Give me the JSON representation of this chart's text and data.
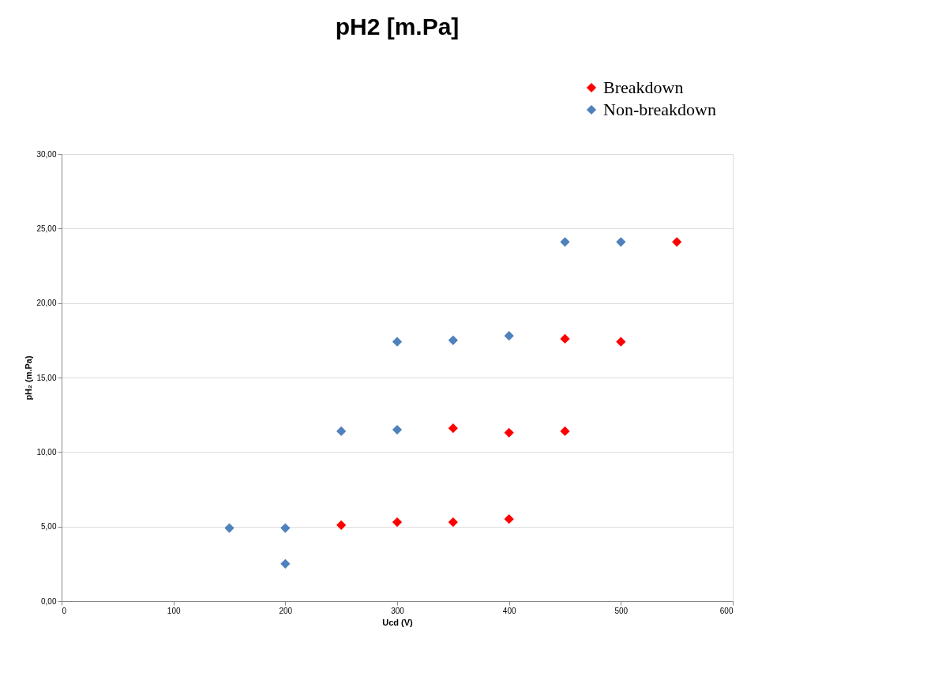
{
  "chart_data": {
    "type": "scatter",
    "title": "pH2 [m.Pa]",
    "xlabel": "Ucd (V)",
    "ylabel": "pH₂ (m.Pa)",
    "series": [
      {
        "name": "Breakdown",
        "color": "#ff0000",
        "x": [
          250,
          300,
          350,
          400,
          350,
          400,
          450,
          450,
          500,
          550
        ],
        "values": [
          5.1,
          5.3,
          5.3,
          5.5,
          11.6,
          11.3,
          11.4,
          17.6,
          17.4,
          24.1
        ]
      },
      {
        "name": "Non-breakdown",
        "color": "#4f81bd",
        "x": [
          150,
          200,
          200,
          250,
          300,
          300,
          350,
          400,
          450,
          500
        ],
        "values": [
          4.9,
          4.9,
          2.5,
          11.4,
          11.5,
          17.4,
          17.5,
          17.8,
          24.1,
          24.1
        ]
      }
    ],
    "xlim": [
      0,
      600
    ],
    "xticks": [
      0,
      100,
      200,
      300,
      400,
      500,
      600
    ],
    "ylim": [
      0,
      30
    ],
    "yticks": [
      {
        "value": 0,
        "label": "0,00"
      },
      {
        "value": 5,
        "label": "5,00"
      },
      {
        "value": 10,
        "label": "10,00"
      },
      {
        "value": 15,
        "label": "15,00"
      },
      {
        "value": 20,
        "label": "20,00"
      },
      {
        "value": 25,
        "label": "25,00"
      },
      {
        "value": 30,
        "label": "30,00"
      }
    ],
    "grid": "y",
    "legend": "top right",
    "marker": "diamond"
  }
}
